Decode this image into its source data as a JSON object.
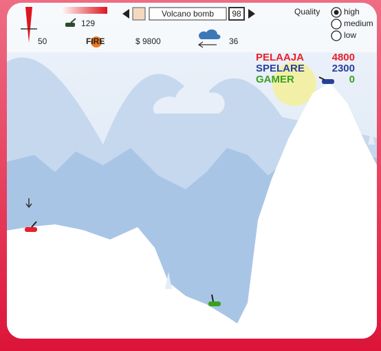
{
  "hud": {
    "angle": "50",
    "power": "129",
    "fire": "FIRE",
    "weapon": "Volcano bomb",
    "ammo": "98",
    "money": "$ 9800",
    "wind": "36"
  },
  "quality": {
    "label": "Quality",
    "options": [
      "high",
      "medium",
      "low"
    ]
  },
  "players": [
    {
      "name": "PELAAJA",
      "score": "4800",
      "color": "#e8202a"
    },
    {
      "name": "SPELARE",
      "score": "2300",
      "color": "#2a3f9a"
    },
    {
      "name": "GAMER",
      "score": "0",
      "color": "#3aa020"
    }
  ]
}
